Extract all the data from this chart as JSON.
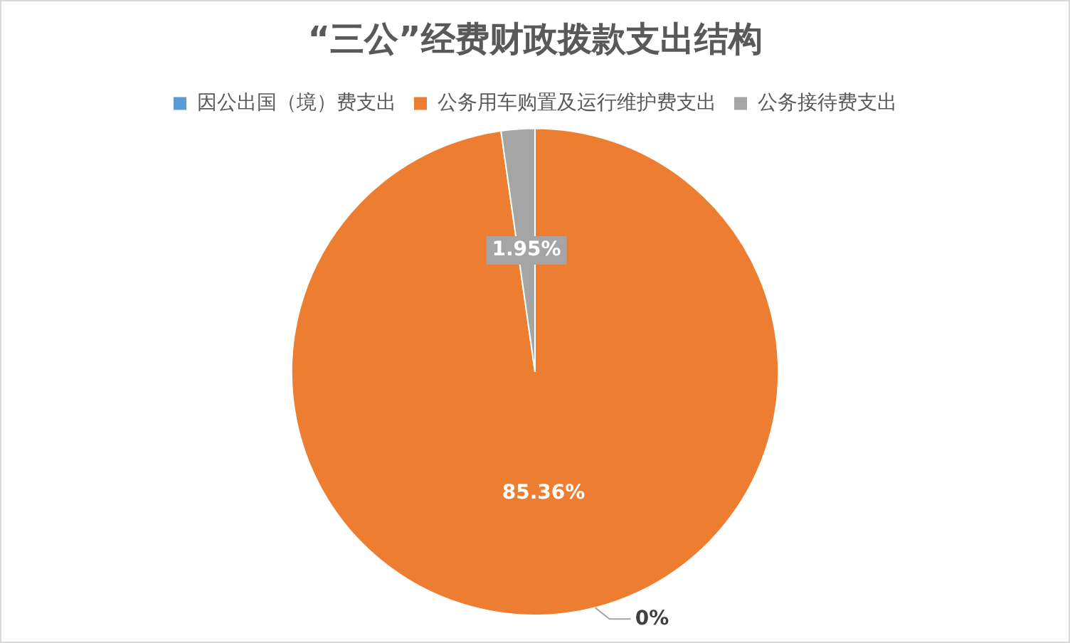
{
  "chart_data": {
    "type": "pie",
    "title": "“三公”经费财政拨款支出结构",
    "categories": [
      "因公出国（境）费支出",
      "公务用车购置及运行维护费支出",
      "公务接待费支出"
    ],
    "values": [
      0,
      85.36,
      1.95
    ],
    "colors": [
      "#5b9bd5",
      "#ed7d31",
      "#a5a5a5"
    ],
    "value_labels": [
      "0%",
      "85.36%",
      "1.95%"
    ],
    "legend": "top"
  }
}
